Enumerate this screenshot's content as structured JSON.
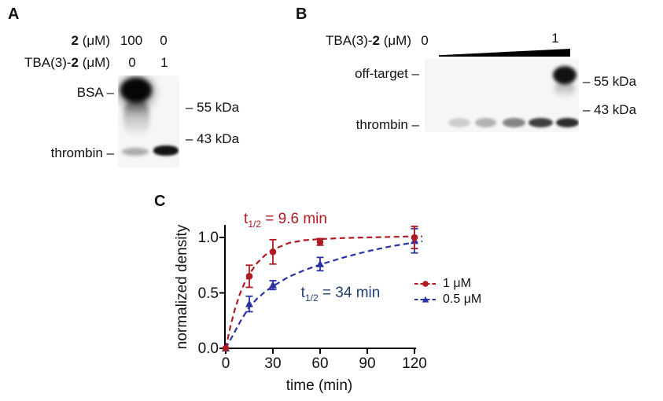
{
  "panelA": {
    "label": "A",
    "rows": [
      {
        "prefix": "",
        "bold": "2",
        "suffix": " (μM)",
        "values": [
          "100",
          "0"
        ]
      },
      {
        "prefix": "TBA(3)-",
        "bold": "2",
        "suffix": " (μM)",
        "values": [
          "0",
          "1"
        ]
      }
    ],
    "bsa_label": "BSA –",
    "thrombin_label": "thrombin –",
    "marker_55": "– 55 kDa",
    "marker_43": "– 43 kDa"
  },
  "panelB": {
    "label": "B",
    "header": {
      "prefix": "TBA(3)-",
      "bold": "2",
      "suffix": " (μM)"
    },
    "gradient_start": "0",
    "gradient_end": "1",
    "offtarget_label": "off-target –",
    "thrombin_label": "thrombin –",
    "marker_55": "– 55 kDa",
    "marker_43": "– 43 kDa"
  },
  "chart_data": {
    "type": "scatter",
    "panel_label": "C",
    "xlabel": "time (min)",
    "ylabel": "normalized density",
    "xlim": [
      0,
      126
    ],
    "ylim": [
      0,
      1.12
    ],
    "xticks": [
      0,
      30,
      60,
      90,
      120
    ],
    "xtick_labels": [
      "0",
      "30",
      "60",
      "90",
      "120"
    ],
    "yticks": [
      0.0,
      0.5,
      1.0
    ],
    "ytick_labels": [
      "0.0",
      "0.5",
      "1.0"
    ],
    "grid": false,
    "legend_position": "right-center",
    "series": [
      {
        "name": "1 μM",
        "color": "#b01b24",
        "marker": "circle",
        "line_style": "dashed",
        "x": [
          0,
          15,
          30,
          60,
          120
        ],
        "y": [
          0.0,
          0.65,
          0.87,
          0.96,
          1.0
        ],
        "yerr": [
          0,
          0.1,
          0.11,
          0.03,
          0.1
        ],
        "t_half_min": 9.6,
        "fit_t": [
          0,
          3,
          6,
          9,
          12,
          15,
          20,
          25,
          30,
          40,
          50,
          60,
          75,
          90,
          105,
          120,
          125
        ],
        "fit_y": [
          0,
          0.2,
          0.36,
          0.49,
          0.59,
          0.67,
          0.77,
          0.84,
          0.89,
          0.95,
          0.975,
          0.985,
          0.995,
          1.0,
          1.005,
          1.01,
          1.01
        ]
      },
      {
        "name": "0.5 μM",
        "color": "#2a32a4",
        "marker": "triangle",
        "line_style": "dashed",
        "x": [
          0,
          15,
          30,
          60,
          120
        ],
        "y": [
          0.0,
          0.4,
          0.57,
          0.76,
          0.97
        ],
        "yerr": [
          0,
          0.07,
          0.04,
          0.06,
          0.11
        ],
        "t_half_min": 34,
        "fit_t": [
          0,
          5,
          10,
          15,
          20,
          25,
          30,
          40,
          50,
          60,
          75,
          90,
          105,
          120,
          125
        ],
        "fit_y": [
          0,
          0.13,
          0.26,
          0.37,
          0.45,
          0.51,
          0.56,
          0.645,
          0.705,
          0.755,
          0.82,
          0.875,
          0.92,
          0.955,
          0.965
        ]
      }
    ],
    "annotations": [
      {
        "prefix": "t",
        "sub": "1/2",
        "rest": " = 9.6 min",
        "color": "#b01b24"
      },
      {
        "prefix": "t",
        "sub": "1/2",
        "rest": " = 34 min",
        "color": "#23406f"
      }
    ]
  }
}
